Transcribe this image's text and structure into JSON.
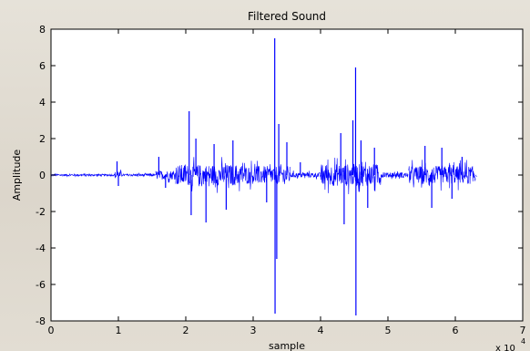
{
  "chart_data": {
    "type": "line",
    "title": "Filtered Sound",
    "xlabel": "sample",
    "ylabel": "Amplitude",
    "x_multiplier_label": "x 10",
    "x_multiplier_exponent": "4",
    "xlim": [
      0,
      7
    ],
    "ylim": [
      -8,
      8
    ],
    "xticks": [
      "0",
      "1",
      "2",
      "3",
      "4",
      "5",
      "6",
      "7"
    ],
    "yticks": [
      "-8",
      "-6",
      "-4",
      "-2",
      "0",
      "2",
      "4",
      "6",
      "8"
    ],
    "grid": false,
    "series": [
      {
        "color": "#0000ff",
        "segments": [
          {
            "x_start": 0.0,
            "x_end": 0.95,
            "amp": 0.1,
            "spikes": []
          },
          {
            "x_start": 0.95,
            "x_end": 1.05,
            "amp": 0.35,
            "spikes": [
              {
                "x": 0.98,
                "y": 0.75
              },
              {
                "x": 1.0,
                "y": -0.6
              }
            ]
          },
          {
            "x_start": 1.05,
            "x_end": 1.55,
            "amp": 0.12,
            "spikes": []
          },
          {
            "x_start": 1.55,
            "x_end": 1.85,
            "amp": 0.45,
            "spikes": [
              {
                "x": 1.6,
                "y": 1.0
              },
              {
                "x": 1.7,
                "y": -0.7
              }
            ]
          },
          {
            "x_start": 1.85,
            "x_end": 2.85,
            "amp": 1.05,
            "spikes": [
              {
                "x": 2.05,
                "y": 3.5
              },
              {
                "x": 2.08,
                "y": -2.2
              },
              {
                "x": 2.15,
                "y": 2.0
              },
              {
                "x": 2.3,
                "y": -2.6
              },
              {
                "x": 2.42,
                "y": 1.7
              },
              {
                "x": 2.6,
                "y": -1.9
              },
              {
                "x": 2.7,
                "y": 1.9
              }
            ]
          },
          {
            "x_start": 2.85,
            "x_end": 3.55,
            "amp": 0.9,
            "spikes": [
              {
                "x": 3.32,
                "y": 7.5
              },
              {
                "x": 3.325,
                "y": -7.6
              },
              {
                "x": 3.35,
                "y": -4.6
              },
              {
                "x": 3.38,
                "y": 2.8
              },
              {
                "x": 3.5,
                "y": 1.8
              },
              {
                "x": 3.2,
                "y": -1.5
              }
            ]
          },
          {
            "x_start": 3.55,
            "x_end": 4.0,
            "amp": 0.25,
            "spikes": [
              {
                "x": 3.7,
                "y": 0.7
              }
            ]
          },
          {
            "x_start": 4.0,
            "x_end": 4.9,
            "amp": 1.1,
            "spikes": [
              {
                "x": 4.3,
                "y": 2.3
              },
              {
                "x": 4.35,
                "y": -2.7
              },
              {
                "x": 4.48,
                "y": 3.0
              },
              {
                "x": 4.52,
                "y": 5.9
              },
              {
                "x": 4.525,
                "y": -7.7
              },
              {
                "x": 4.6,
                "y": 1.9
              },
              {
                "x": 4.7,
                "y": -1.8
              },
              {
                "x": 4.8,
                "y": 1.5
              }
            ]
          },
          {
            "x_start": 4.9,
            "x_end": 5.3,
            "amp": 0.25,
            "spikes": []
          },
          {
            "x_start": 5.3,
            "x_end": 6.3,
            "amp": 0.9,
            "spikes": [
              {
                "x": 5.55,
                "y": 1.6
              },
              {
                "x": 5.65,
                "y": -1.8
              },
              {
                "x": 5.8,
                "y": 1.5
              },
              {
                "x": 5.95,
                "y": -1.3
              },
              {
                "x": 6.1,
                "y": 1.0
              }
            ]
          },
          {
            "x_start": 6.3,
            "x_end": 6.32,
            "amp": 0.15,
            "spikes": []
          }
        ]
      }
    ]
  }
}
